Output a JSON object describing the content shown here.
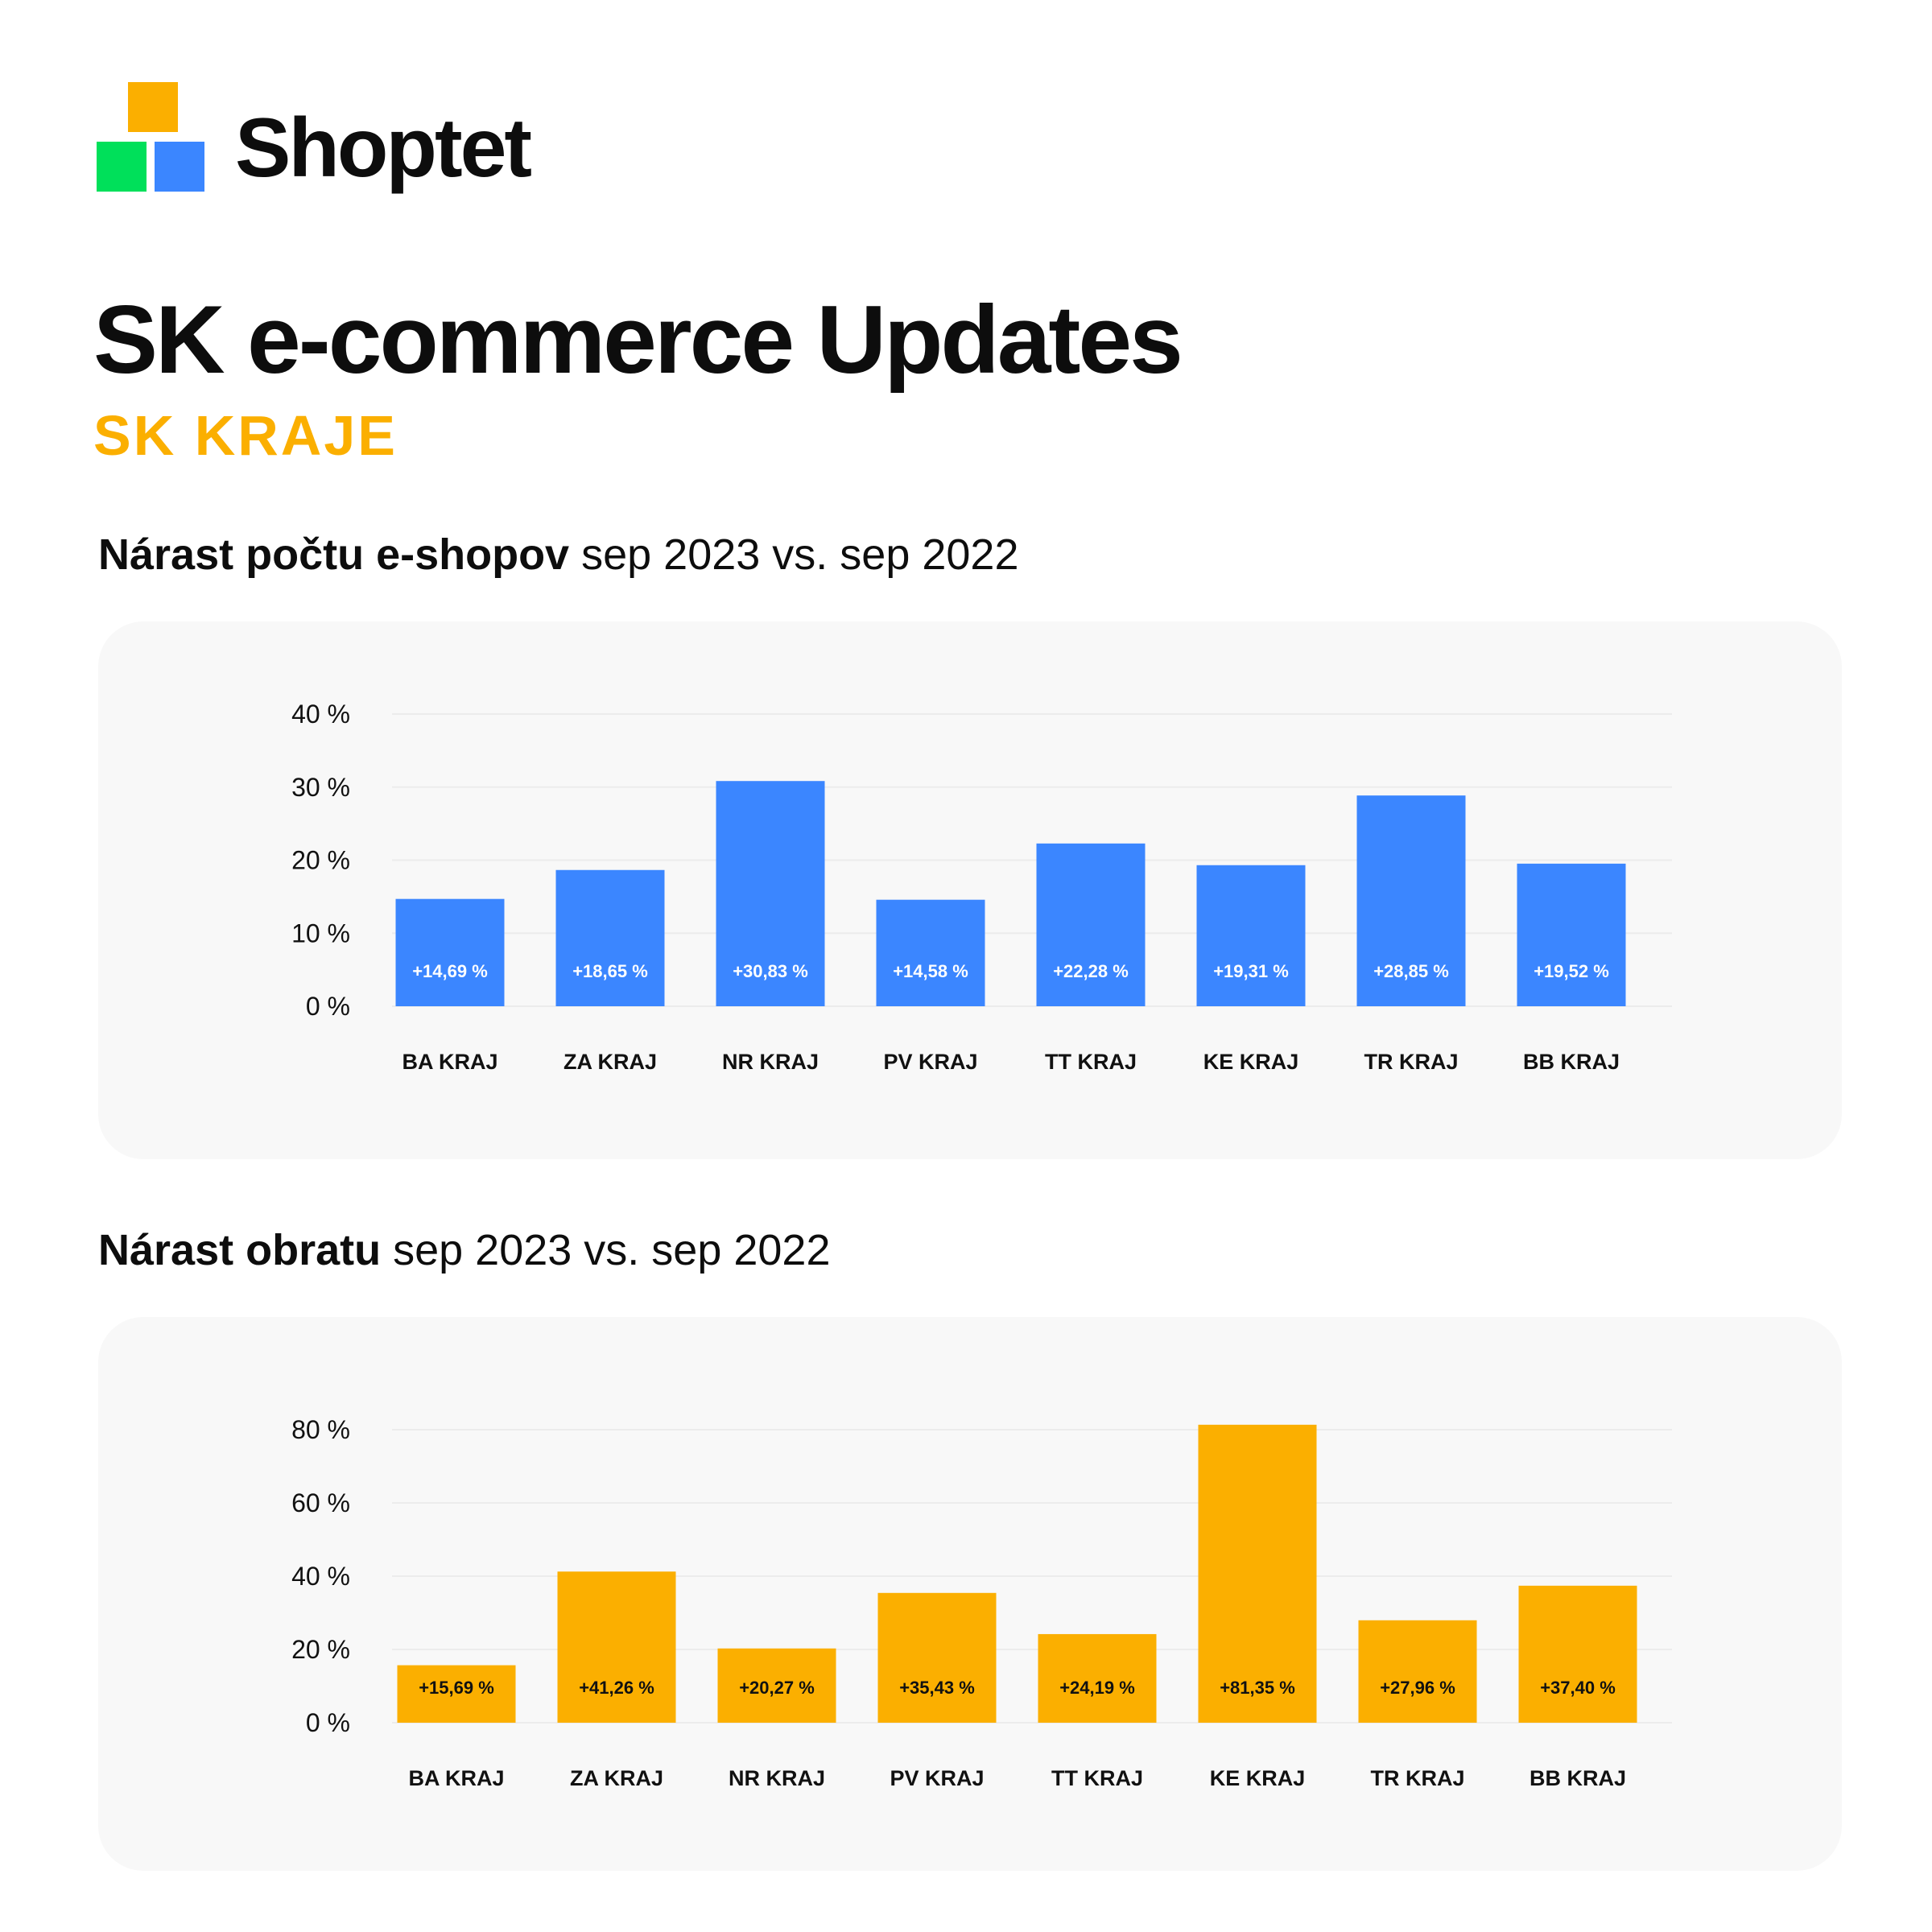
{
  "brand": {
    "name": "Shoptet",
    "logo_icon": "three-squares-logo-icon"
  },
  "title": "SK e-commerce Updates",
  "subtitle": "SK KRAJE",
  "colors": {
    "orange": "#FBAF00",
    "green": "#00E05A",
    "blue": "#3B86FF",
    "card_bg": "#F8F8F8"
  },
  "sections": [
    {
      "heading_bold": "Nárast počtu e-shopov",
      "heading_rest": " sep 2023 vs. sep 2022"
    },
    {
      "heading_bold": "Nárast obratu",
      "heading_rest": " sep 2023 vs. sep 2022"
    }
  ],
  "chart_data": [
    {
      "type": "bar",
      "categories": [
        "BA KRAJ",
        "ZA KRAJ",
        "NR KRAJ",
        "PV KRAJ",
        "TT KRAJ",
        "KE KRAJ",
        "TR KRAJ",
        "BB KRAJ"
      ],
      "values": [
        14.69,
        18.65,
        30.83,
        14.58,
        22.28,
        19.31,
        28.85,
        19.52
      ],
      "data_labels": [
        "+14,69 %",
        "+18,65 %",
        "+30,83 %",
        "+14,58 %",
        "+22,28 %",
        "+19,31 %",
        "+28,85 %",
        "+19,52 %"
      ],
      "ylim": [
        0,
        40
      ],
      "yticks": [
        0,
        10,
        20,
        30,
        40
      ],
      "ytick_labels": [
        "0 %",
        "10 %",
        "20 %",
        "30 %",
        "40 %"
      ],
      "bar_color": "#3B86FF",
      "label_color": "#FFFFFF",
      "grid": true,
      "title": "",
      "xlabel": "",
      "ylabel": ""
    },
    {
      "type": "bar",
      "categories": [
        "BA KRAJ",
        "ZA KRAJ",
        "NR KRAJ",
        "PV KRAJ",
        "TT KRAJ",
        "KE KRAJ",
        "TR KRAJ",
        "BB KRAJ"
      ],
      "values": [
        15.69,
        41.26,
        20.27,
        35.43,
        24.19,
        81.35,
        27.96,
        37.4
      ],
      "data_labels": [
        "+15,69 %",
        "+41,26 %",
        "+20,27 %",
        "+35,43 %",
        "+24,19 %",
        "+81,35 %",
        "+27,96 %",
        "+37,40 %"
      ],
      "ylim": [
        0,
        80
      ],
      "yticks": [
        0,
        20,
        40,
        60,
        80
      ],
      "ytick_labels": [
        "0 %",
        "20 %",
        "40 %",
        "60 %",
        "80 %"
      ],
      "bar_color": "#FBAF00",
      "label_color": "#111111",
      "grid": true,
      "title": "",
      "xlabel": "",
      "ylabel": ""
    }
  ]
}
